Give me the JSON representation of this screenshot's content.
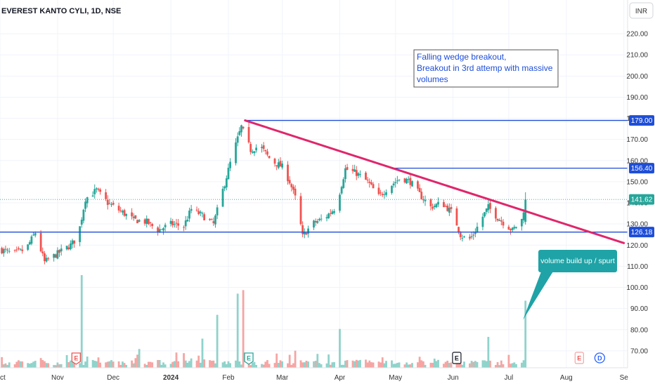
{
  "chart_data": {
    "type": "candlestick",
    "title": "EVEREST KANTO CYLI, 1D, NSE",
    "currency_label": "INR",
    "ylim": [
      62,
      226
    ],
    "y_ticks": [
      70,
      80,
      90,
      100,
      110,
      120,
      130,
      140,
      150,
      160,
      170,
      180,
      190,
      200,
      210,
      220
    ],
    "y_tick_labels": [
      "70.00",
      "80.00",
      "90.00",
      "100.00",
      "110.00",
      "120.00",
      "130.00",
      "140.00",
      "150.00",
      "160.00",
      "170.00",
      "180.00",
      "190.00",
      "200.00",
      "210.00",
      "220.00"
    ],
    "x_tick_labels": [
      {
        "label": "Oct",
        "date": "2023-10-01"
      },
      {
        "label": "Nov",
        "date": "2023-11-01"
      },
      {
        "label": "Dec",
        "date": "2023-12-01"
      },
      {
        "label": "2024",
        "date": "2024-01-01"
      },
      {
        "label": "Feb",
        "date": "2024-02-01"
      },
      {
        "label": "Mar",
        "date": "2024-03-01"
      },
      {
        "label": "Apr",
        "date": "2024-04-01"
      },
      {
        "label": "May",
        "date": "2024-05-01"
      },
      {
        "label": "Jun",
        "date": "2024-06-01"
      },
      {
        "label": "Jul",
        "date": "2024-07-01"
      },
      {
        "label": "Aug",
        "date": "2024-08-01"
      },
      {
        "label": "Se",
        "date": "2024-09-01"
      }
    ],
    "x_range": [
      "2023-10-01",
      "2024-09-03"
    ],
    "close_path": [
      [
        "2023-10-01",
        118
      ],
      [
        "2023-10-08",
        116
      ],
      [
        "2023-10-15",
        118
      ],
      [
        "2023-10-20",
        126
      ],
      [
        "2023-10-25",
        112
      ],
      [
        "2023-11-01",
        116
      ],
      [
        "2023-11-08",
        120
      ],
      [
        "2023-11-12",
        124
      ],
      [
        "2023-11-16",
        142
      ],
      [
        "2023-11-22",
        146
      ],
      [
        "2023-11-28",
        140
      ],
      [
        "2023-12-05",
        136
      ],
      [
        "2023-12-12",
        132
      ],
      [
        "2023-12-19",
        131
      ],
      [
        "2023-12-25",
        127
      ],
      [
        "2024-01-01",
        130
      ],
      [
        "2024-01-08",
        129
      ],
      [
        "2024-01-12",
        137
      ],
      [
        "2024-01-18",
        134
      ],
      [
        "2024-01-24",
        130
      ],
      [
        "2024-01-29",
        146
      ],
      [
        "2024-02-03",
        162
      ],
      [
        "2024-02-08",
        176
      ],
      [
        "2024-02-13",
        165
      ],
      [
        "2024-02-18",
        167
      ],
      [
        "2024-02-24",
        160
      ],
      [
        "2024-03-01",
        157
      ],
      [
        "2024-03-05",
        150
      ],
      [
        "2024-03-09",
        140
      ],
      [
        "2024-03-12",
        124
      ],
      [
        "2024-03-17",
        130
      ],
      [
        "2024-03-24",
        133
      ],
      [
        "2024-03-30",
        138
      ],
      [
        "2024-04-04",
        156
      ],
      [
        "2024-04-10",
        154
      ],
      [
        "2024-04-16",
        150
      ],
      [
        "2024-04-22",
        143
      ],
      [
        "2024-04-28",
        148
      ],
      [
        "2024-05-04",
        152
      ],
      [
        "2024-05-09",
        150
      ],
      [
        "2024-05-14",
        144
      ],
      [
        "2024-05-20",
        138
      ],
      [
        "2024-05-26",
        140
      ],
      [
        "2024-06-01",
        135
      ],
      [
        "2024-06-05",
        125
      ],
      [
        "2024-06-09",
        122
      ],
      [
        "2024-06-12",
        125
      ],
      [
        "2024-06-16",
        132
      ],
      [
        "2024-06-20",
        138
      ],
      [
        "2024-06-25",
        133
      ],
      [
        "2024-06-29",
        130
      ],
      [
        "2024-07-03",
        127
      ],
      [
        "2024-07-08",
        132
      ],
      [
        "2024-07-10",
        141.62
      ]
    ],
    "volume_spikes": [
      {
        "date": "2023-11-14",
        "value": 105
      },
      {
        "date": "2023-11-19",
        "value": 42
      },
      {
        "date": "2024-01-18",
        "value": 33
      },
      {
        "date": "2024-01-26",
        "value": 60
      },
      {
        "date": "2024-02-06",
        "value": 84
      },
      {
        "date": "2024-02-09",
        "value": 88
      },
      {
        "date": "2024-02-11",
        "value": 72
      },
      {
        "date": "2024-03-03",
        "value": 36
      },
      {
        "date": "2024-04-01",
        "value": 44
      },
      {
        "date": "2024-06-20",
        "value": 35
      },
      {
        "date": "2024-07-10",
        "value": 76
      }
    ],
    "horizontal_levels": [
      {
        "value": 179.0,
        "label": "179.00",
        "start_date": "2024-02-10",
        "color": "#1e4ed8"
      },
      {
        "value": 156.4,
        "label": "156.40",
        "start_date": "2024-04-30",
        "color": "#1e4ed8"
      },
      {
        "value": 126.18,
        "label": "126.18",
        "start_date": "2023-10-01",
        "color": "#1e4ed8"
      }
    ],
    "last_price": {
      "value": 141.62,
      "label": "141.62",
      "color": "#26a69a"
    },
    "trendline": {
      "from": {
        "date": "2024-02-10",
        "value": 179
      },
      "to": {
        "date": "2024-09-01",
        "value": 121
      },
      "color": "#e0266b"
    },
    "colors": {
      "up": "#26a69a",
      "down": "#ef5350",
      "up_volume": "#8fd3cb",
      "down_volume": "#f5a5a3",
      "axis_text": "#333333",
      "grid": "#f0f3fa"
    },
    "annotations": [
      {
        "text_lines": [
          "Falling wedge breakout,",
          "Breakout in 3rd attemp with massive",
          "volumes"
        ],
        "color": "#1e4ed8",
        "border": "#555555"
      },
      {
        "text": "volume build up / spurt",
        "bg": "#1fa3a6",
        "color": "#ffffff"
      }
    ],
    "event_markers": [
      {
        "date": "2023-11-11",
        "label": "E",
        "kind": "earnings-past"
      },
      {
        "date": "2024-02-12",
        "label": "E",
        "kind": "earnings-active"
      },
      {
        "date": "2024-06-03",
        "label": "E",
        "kind": "earnings-neutral"
      },
      {
        "date": "2024-08-08",
        "label": "E",
        "kind": "earnings-future"
      },
      {
        "date": "2024-08-19",
        "label": "D",
        "kind": "dividend-future"
      }
    ]
  }
}
